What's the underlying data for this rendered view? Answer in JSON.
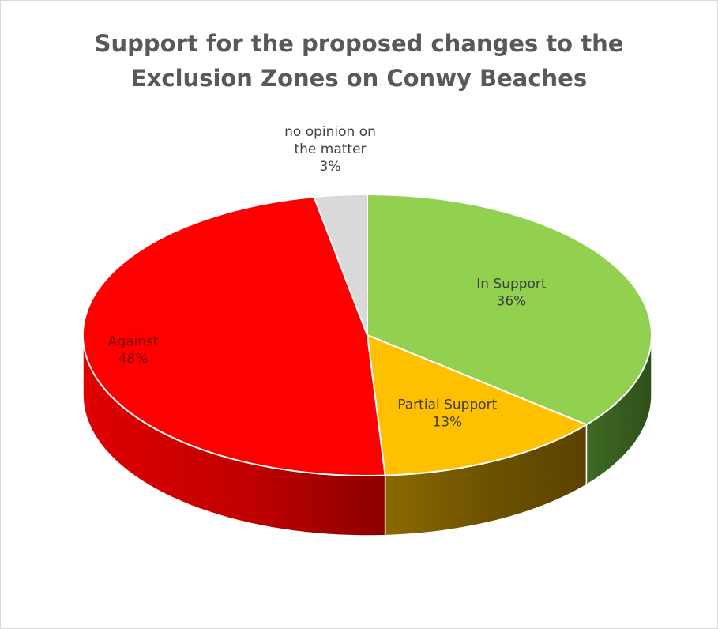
{
  "chart_data": {
    "type": "pie",
    "style": "3d",
    "title_lines": [
      "Support for the proposed changes to the",
      "Exclusion Zones on Conwy Beaches"
    ],
    "slices": [
      {
        "label": "In Support",
        "value": 36,
        "pct_label": "36%",
        "color": "#92d050",
        "side_color": "#375623",
        "label_color": "#404040"
      },
      {
        "label": "Partial Support",
        "value": 13,
        "pct_label": "13%",
        "color": "#ffc000",
        "side_color": "#7f6000",
        "label_color": "#404040"
      },
      {
        "label": "Against",
        "value": 48,
        "pct_label": "48%",
        "color": "#ff0000",
        "side_color": "#c00000",
        "label_color": "#7f0000"
      },
      {
        "label_lines": [
          "no opinion on",
          "the matter"
        ],
        "value": 3,
        "pct_label": "3%",
        "color": "#d9d9d9",
        "side_color": "#a6a6a6",
        "label_color": "#404040"
      }
    ]
  }
}
